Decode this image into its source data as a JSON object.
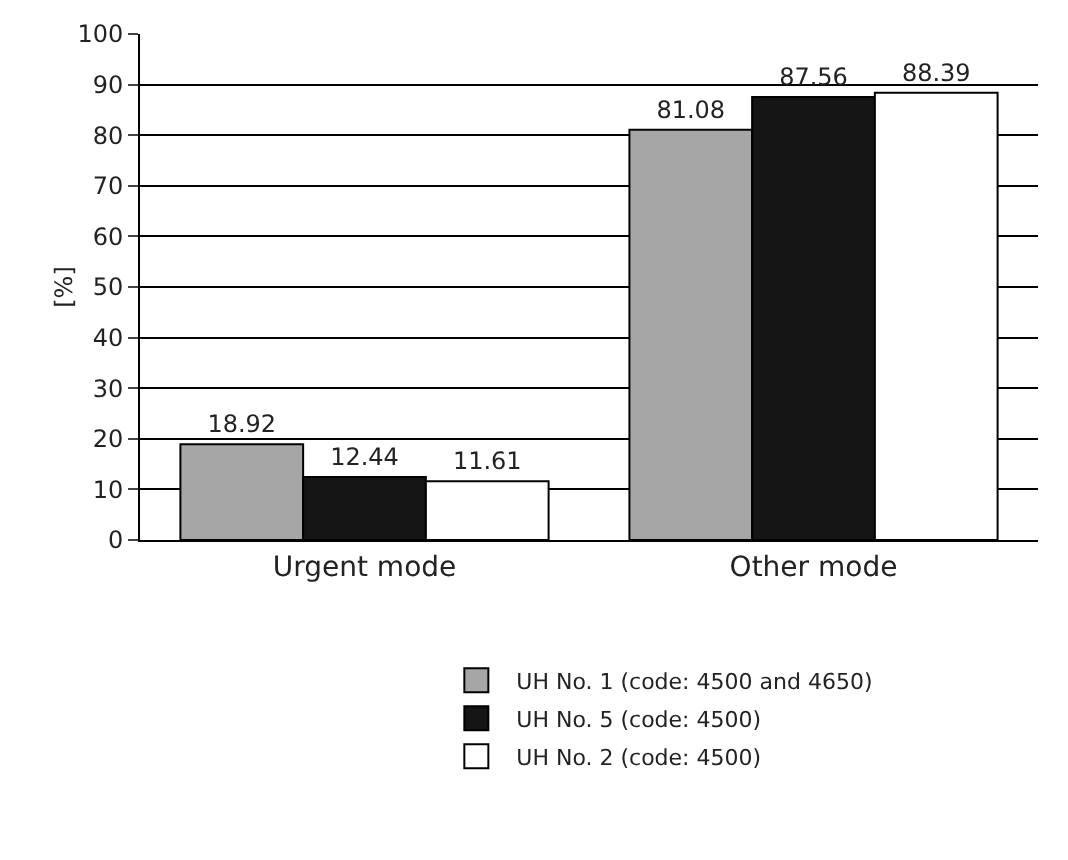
{
  "chart_data": {
    "type": "bar",
    "ylabel": "[%]",
    "categories": [
      "Urgent mode",
      "Other mode"
    ],
    "series": [
      {
        "name": "UH No. 1 (code: 4500 and 4650)",
        "color": "#a6a6a6",
        "values": [
          18.92,
          81.08
        ]
      },
      {
        "name": "UH No. 5 (code: 4500)",
        "color": "#151515",
        "values": [
          12.44,
          87.56
        ]
      },
      {
        "name": "UH No. 2 (code: 4500)",
        "color": "#ffffff",
        "values": [
          11.61,
          88.39
        ]
      }
    ],
    "ylim": [
      0,
      100
    ],
    "yticks": [
      0,
      10,
      20,
      30,
      40,
      50,
      60,
      70,
      80,
      90,
      100
    ],
    "grid": "y",
    "legend": "bottom",
    "data_labels": true
  }
}
